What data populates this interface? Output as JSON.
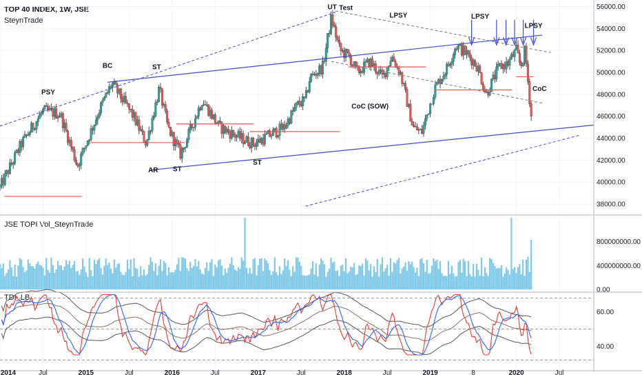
{
  "header": {
    "title": "TOP 40 INDEX, 1W, JSE",
    "author": "SteynTrade",
    "volume_label": "JSE TOPI Vol_SteynTrade",
    "indicator_label": "TDI_LB"
  },
  "colors": {
    "up": "#26a69a",
    "down": "#ef5350",
    "wick": "#434651",
    "trend": "#3f48cc",
    "support": "#ef5350",
    "volume": "#7fc8e8",
    "tdi_blue": "#2962ff",
    "tdi_red": "#e53935",
    "tdi_bands": "#555555"
  },
  "chart_data": [
    {
      "type": "candlestick",
      "title": "TOP 40 INDEX, 1W, JSE",
      "x_ticks": [
        "2014",
        "Jul",
        "2015",
        "Jul",
        "2016",
        "Jul",
        "2017",
        "Jul",
        "2018",
        "Jul",
        "2019",
        "8",
        "2020",
        "Jul"
      ],
      "y_ticks": [
        "56000.00",
        "54000.00",
        "52000.00",
        "50000.00",
        "48000.00",
        "46000.00",
        "44000.00",
        "42000.00",
        "40000.00",
        "38000.00"
      ],
      "ylim": [
        37000,
        56600
      ],
      "xlim": [
        2014.0,
        2020.9
      ],
      "close_path": [
        [
          2014.0,
          39500
        ],
        [
          2014.25,
          43500
        ],
        [
          2014.5,
          46500
        ],
        [
          2014.7,
          46200
        ],
        [
          2014.9,
          41500
        ],
        [
          2015.15,
          46500
        ],
        [
          2015.3,
          49000
        ],
        [
          2015.55,
          46000
        ],
        [
          2015.7,
          43500
        ],
        [
          2015.85,
          48500
        ],
        [
          2015.95,
          45000
        ],
        [
          2016.1,
          42500
        ],
        [
          2016.2,
          44500
        ],
        [
          2016.35,
          47500
        ],
        [
          2016.55,
          45000
        ],
        [
          2016.8,
          44000
        ],
        [
          2016.95,
          43500
        ],
        [
          2017.3,
          45000
        ],
        [
          2017.45,
          47000
        ],
        [
          2017.55,
          47500
        ],
        [
          2017.6,
          49500
        ],
        [
          2017.75,
          50500
        ],
        [
          2017.85,
          55000
        ],
        [
          2017.95,
          52000
        ],
        [
          2018.05,
          51500
        ],
        [
          2018.15,
          50000
        ],
        [
          2018.3,
          51000
        ],
        [
          2018.45,
          49500
        ],
        [
          2018.55,
          51500
        ],
        [
          2018.65,
          50000
        ],
        [
          2018.8,
          45000
        ],
        [
          2018.9,
          44500
        ],
        [
          2019.05,
          48500
        ],
        [
          2019.2,
          50500
        ],
        [
          2019.3,
          52500
        ],
        [
          2019.45,
          51500
        ],
        [
          2019.55,
          50500
        ],
        [
          2019.65,
          48000
        ],
        [
          2019.8,
          50500
        ],
        [
          2019.9,
          50800
        ],
        [
          2020.0,
          52000
        ],
        [
          2020.05,
          50500
        ],
        [
          2020.1,
          52000
        ],
        [
          2020.18,
          45500
        ]
      ],
      "annotations": [
        {
          "text": "PSY",
          "x": 2014.56,
          "y": 48000
        },
        {
          "text": "BC",
          "x": 2015.25,
          "y": 50400
        },
        {
          "text": "ST",
          "x": 2015.82,
          "y": 50300
        },
        {
          "text": "AR",
          "x": 2015.78,
          "y": 40900
        },
        {
          "text": "ST",
          "x": 2016.06,
          "y": 41000
        },
        {
          "text": "ST",
          "x": 2016.99,
          "y": 41600
        },
        {
          "text": "UT",
          "x": 2017.86,
          "y": 55750
        },
        {
          "text": "Test",
          "x": 2018.02,
          "y": 55700
        },
        {
          "text": "LPSY",
          "x": 2018.63,
          "y": 55000
        },
        {
          "text": "CoC (SOW)",
          "x": 2018.3,
          "y": 46700
        },
        {
          "text": "LPSY",
          "x": 2019.58,
          "y": 54900
        },
        {
          "text": "LPSY",
          "x": 2020.2,
          "y": 54050
        },
        {
          "text": "CoC",
          "x": 2020.27,
          "y": 48300
        }
      ],
      "lines": [
        {
          "style": "solid",
          "points": [
            [
              2015.25,
              49100
            ],
            [
              2020.3,
              53400
            ]
          ]
        },
        {
          "style": "solid",
          "points": [
            [
              2015.75,
              41100
            ],
            [
              2020.9,
              45200
            ]
          ]
        },
        {
          "style": "dashed",
          "points": [
            [
              2014.0,
              45100
            ],
            [
              2017.9,
              55500
            ]
          ]
        },
        {
          "style": "dashed",
          "points": [
            [
              2017.9,
              55600
            ],
            [
              2020.4,
              51800
            ]
          ]
        },
        {
          "style": "dashed",
          "points": [
            [
              2017.85,
              51000
            ],
            [
              2020.3,
              47200
            ]
          ]
        },
        {
          "style": "dashed",
          "points": [
            [
              2017.55,
              37800
            ],
            [
              2020.75,
              44300
            ]
          ]
        }
      ],
      "support_levels": [
        {
          "y": 38700,
          "x1": 2014.05,
          "x2": 2014.95
        },
        {
          "y": 43600,
          "x1": 2015.05,
          "x2": 2016.15
        },
        {
          "y": 45300,
          "x1": 2016.05,
          "x2": 2016.95
        },
        {
          "y": 44600,
          "x1": 2016.9,
          "x2": 2017.95
        },
        {
          "y": 50500,
          "x1": 2018.05,
          "x2": 2018.95
        },
        {
          "y": 48400,
          "x1": 2019.05,
          "x2": 2019.95
        },
        {
          "y": 49600,
          "x1": 2020.0,
          "x2": 2020.2
        }
      ],
      "arrows_x": [
        2019.48,
        2019.77,
        2019.88,
        2019.98,
        2020.08,
        2020.2
      ]
    },
    {
      "type": "bar",
      "title": "JSE TOPI Vol_SteynTrade",
      "y_ticks": [
        "800000000.00",
        "400000000.00",
        "0.00"
      ],
      "ylim": [
        0,
        1200000000
      ],
      "typical_volume": 380000000,
      "spikes": [
        {
          "x": 2016.85,
          "value": 1200000000
        },
        {
          "x": 2019.95,
          "value": 1200000000
        },
        {
          "x": 2020.18,
          "value": 830000000
        }
      ]
    },
    {
      "type": "line",
      "title": "TDI_LB",
      "y_ticks": [
        "60.00",
        "40.00"
      ],
      "ylim": [
        29,
        73
      ],
      "reference_levels": [
        68,
        50,
        32
      ],
      "series": [
        {
          "role": "price",
          "color": "#2962ff"
        },
        {
          "role": "signal",
          "color": "#e53935"
        },
        {
          "role": "bands",
          "color": "#555555"
        }
      ]
    }
  ]
}
